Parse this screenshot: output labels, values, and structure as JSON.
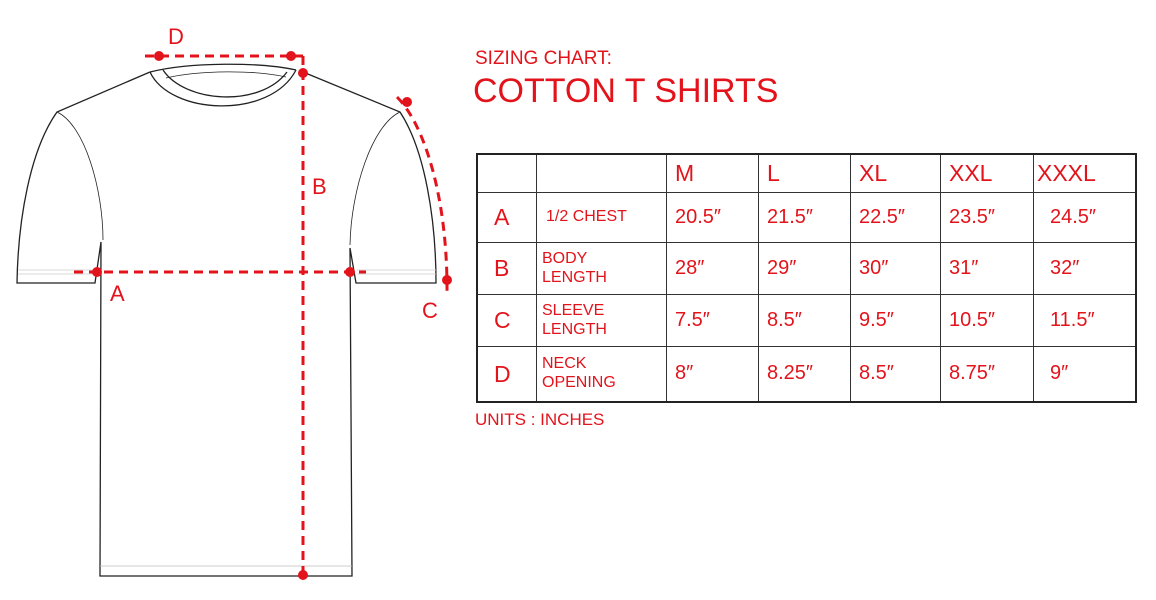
{
  "heading": {
    "subtitle": "SIZING CHART:",
    "title": "COTTON T SHIRTS"
  },
  "diagram_labels": {
    "a": "A",
    "b": "B",
    "c": "C",
    "d": "D"
  },
  "colors": {
    "accent": "#e3131b",
    "outline": "#222222"
  },
  "table": {
    "sizes": [
      "M",
      "L",
      "XL",
      "XXL",
      "XXXL"
    ],
    "rows": [
      {
        "letter": "A",
        "name_line1": "1/2 CHEST",
        "name_line2": "",
        "values": [
          "20.5″",
          "21.5″",
          "22.5″",
          "23.5″",
          "24.5″"
        ]
      },
      {
        "letter": "B",
        "name_line1": "BODY",
        "name_line2": "LENGTH",
        "values": [
          "28″",
          "29″",
          "30″",
          "31″",
          "32″"
        ]
      },
      {
        "letter": "C",
        "name_line1": "SLEEVE",
        "name_line2": "LENGTH",
        "values": [
          "7.5″",
          "8.5″",
          "9.5″",
          "10.5″",
          "11.5″"
        ]
      },
      {
        "letter": "D",
        "name_line1": "NECK",
        "name_line2": "OPENING",
        "values": [
          "8″",
          "8.25″",
          "8.5″",
          "8.75″",
          "9″"
        ]
      }
    ]
  },
  "units": "UNITS : INCHES"
}
